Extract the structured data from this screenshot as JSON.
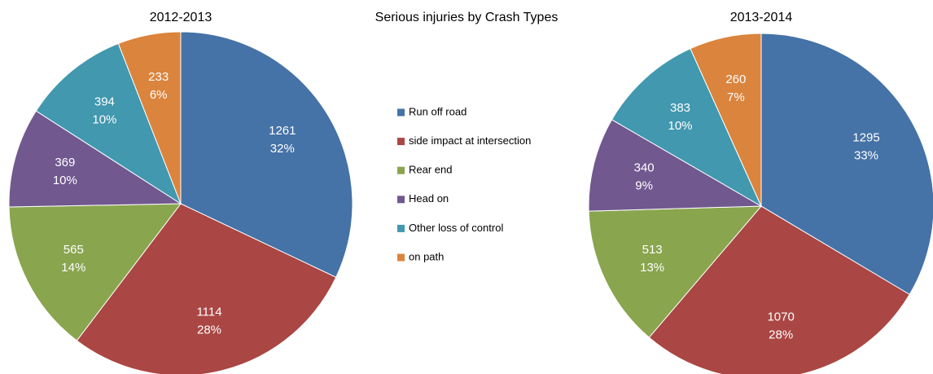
{
  "title": "Serious injuries by Crash Types",
  "legend": {
    "categories": [
      "Run off road",
      "side impact at intersection",
      "Rear end",
      "Head on",
      "Other loss of control",
      "on path"
    ],
    "colors": [
      "#4572a7",
      "#aa4643",
      "#89a54e",
      "#71588f",
      "#4198af",
      "#db843d"
    ]
  },
  "chart_data": [
    {
      "type": "pie",
      "title": "2012-2013",
      "values": [
        1261,
        1114,
        565,
        369,
        394,
        233
      ],
      "percent_labels": [
        "32%",
        "28%",
        "14%",
        "10%",
        "10%",
        "6%"
      ]
    },
    {
      "type": "pie",
      "title": "2013-2014",
      "values": [
        1295,
        1070,
        513,
        340,
        383,
        260
      ],
      "percent_labels": [
        "33%",
        "28%",
        "13%",
        "9%",
        "10%",
        "7%"
      ]
    }
  ]
}
